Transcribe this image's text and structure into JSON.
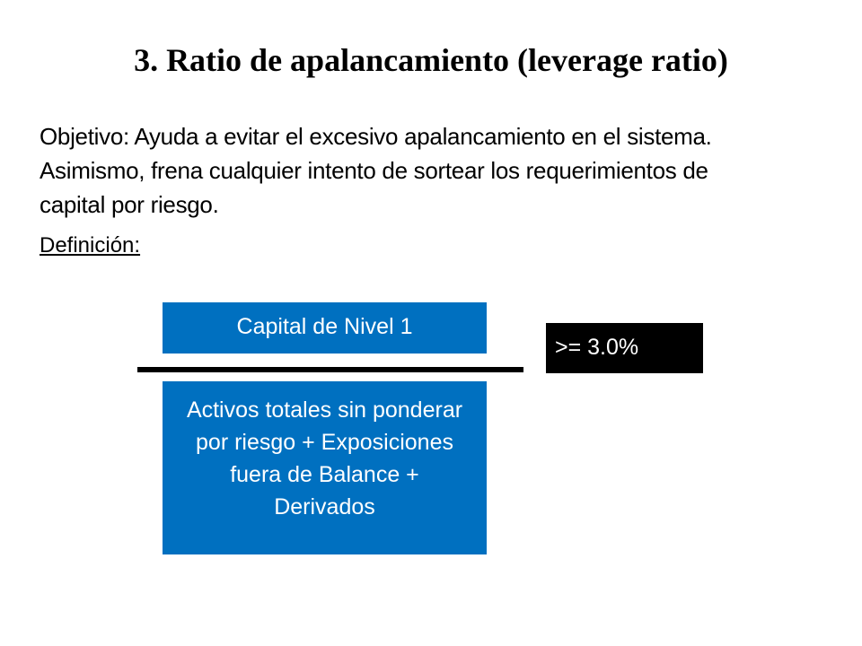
{
  "slide": {
    "title": "3. Ratio de apalancamiento (leverage ratio)",
    "objective_lines": [
      "Objetivo:  Ayuda a evitar el excesivo apalancamiento en el sistema.",
      "Asimismo, frena cualquier intento de sortear los requerimientos de",
      "capital por riesgo."
    ],
    "definition_label": "Definición:"
  },
  "formula": {
    "numerator": "Capital de Nivel 1",
    "denominator_lines": [
      "Activos totales sin ponderar",
      "por riesgo + Exposiciones",
      "fuera de Balance +",
      "Derivados"
    ],
    "result": ">= 3.0%"
  },
  "colors": {
    "box_fill": "#0070c0",
    "result_fill": "#000000"
  }
}
